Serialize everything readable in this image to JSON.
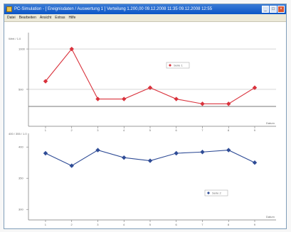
{
  "window": {
    "title": "PC-Simulation - [ Ereignisdaten / Auswertung 1 ]  Verteilung 1.200,00   09.12.2008  11:35   09.12.2008 12:55",
    "buttons": {
      "minimize": "_",
      "maximize": "□",
      "close": "×"
    }
  },
  "menu": {
    "items": [
      "Datei",
      "Bearbeiten",
      "Ansicht",
      "Extras",
      "Hilfe"
    ]
  },
  "colors": {
    "top_series": "#d9323c",
    "bottom_series": "#2f4c96",
    "axis": "#777777",
    "grid": "#bbbbbb"
  },
  "chart_data": [
    {
      "type": "line",
      "ylabel": "Wert / 1.0",
      "xlabel": "Datum",
      "x": [
        "1",
        "2",
        "3",
        "4",
        "5",
        "6",
        "7",
        "8",
        "9"
      ],
      "y_ticks": [
        "1000",
        "500"
      ],
      "ylim": [
        200,
        1150
      ],
      "series": [
        {
          "name": "Serie 1",
          "color": "#d9323c",
          "marker": "diamond",
          "values": [
            600,
            1000,
            380,
            380,
            520,
            380,
            320,
            320,
            520
          ]
        }
      ],
      "legend": "center-right",
      "grid": true
    },
    {
      "type": "line",
      "ylabel": "400 / 355 / 1.0",
      "xlabel": "Datum",
      "x": [
        "1",
        "2",
        "3",
        "4",
        "5",
        "6",
        "7",
        "8",
        "9"
      ],
      "y_ticks": [
        "400",
        "350",
        "300"
      ],
      "ylim": [
        290,
        415
      ],
      "series": [
        {
          "name": "Serie 2",
          "color": "#2f4c96",
          "marker": "diamond",
          "values": [
            390,
            370,
            395,
            383,
            378,
            390,
            392,
            395,
            375
          ]
        }
      ],
      "legend": "lower-right",
      "grid": false
    }
  ]
}
